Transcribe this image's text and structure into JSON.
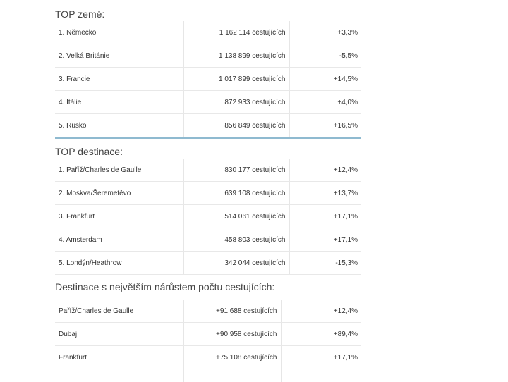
{
  "countries": {
    "title": "TOP země:",
    "rows": [
      {
        "name": "1. Německo",
        "passengers": "1 162 114 cestujících",
        "change": "+3,3%"
      },
      {
        "name": "2. Velká Británie",
        "passengers": "1 138 899 cestujících",
        "change": "-5,5%"
      },
      {
        "name": "3. Francie",
        "passengers": "1 017 899 cestujících",
        "change": "+14,5%"
      },
      {
        "name": "4. Itálie",
        "passengers": "872 933 cestujících",
        "change": "+4,0%"
      },
      {
        "name": "5. Rusko",
        "passengers": "856 849 cestujících",
        "change": "+16,5%"
      }
    ]
  },
  "destinations": {
    "title": "TOP destinace:",
    "rows": [
      {
        "name": "1. Paříž/Charles de Gaulle",
        "passengers": "830 177 cestujících",
        "change": "+12,4%"
      },
      {
        "name": "2. Moskva/Šeremetěvo",
        "passengers": "639 108 cestujících",
        "change": "+13,7%"
      },
      {
        "name": "3. Frankfurt",
        "passengers": "514 061 cestujících",
        "change": "+17,1%"
      },
      {
        "name": "4. Amsterdam",
        "passengers": "458 803 cestujících",
        "change": "+17,1%"
      },
      {
        "name": "5. Londýn/Heathrow",
        "passengers": "342 044 cestujících",
        "change": "-15,3%"
      }
    ]
  },
  "growth": {
    "title": "Destinace s největším nárůstem počtu cestujících:",
    "rows": [
      {
        "name": "Paříž/Charles de Gaulle",
        "passengers": "+91 688 cestujících",
        "change": "+12,4%"
      },
      {
        "name": "Dubaj",
        "passengers": "+90 958 cestujících",
        "change": "+89,4%"
      },
      {
        "name": "Frankfurt",
        "passengers": "+75 108 cestujících",
        "change": "+17,1%"
      }
    ]
  }
}
